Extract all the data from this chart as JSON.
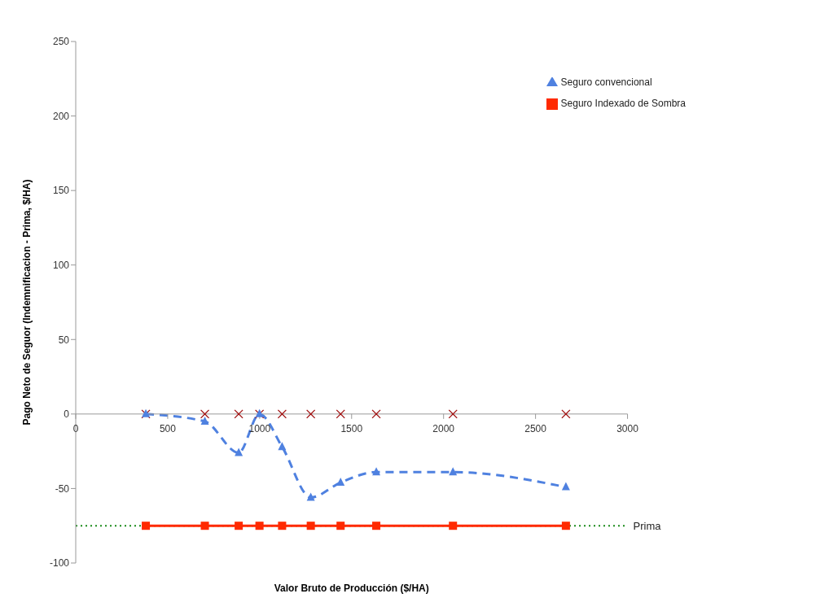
{
  "chart_data": {
    "type": "line",
    "xlabel": "Valor Bruto de Producción ($/HA)",
    "ylabel": "Pago Neto de Seguor (Indemnificacion - Prima, $/HA)",
    "x": [
      381,
      702,
      886,
      999,
      1122,
      1278,
      1440,
      1634,
      2051,
      2665
    ],
    "series": [
      {
        "name": "Seguro convencional",
        "color": "#4f81e0",
        "values": [
          0,
          -5,
          -26,
          0,
          -22,
          -56,
          -46,
          -39,
          -39,
          -49
        ],
        "marker": "triangle",
        "line_style": "dashed"
      },
      {
        "name": "Seguro Indexado de Sombra",
        "color": "#ff2a00",
        "values": [
          -75,
          -75,
          -75,
          -75,
          -75,
          -75,
          -75,
          -75,
          -75,
          -75
        ],
        "marker": "square",
        "line_style": "solid"
      },
      {
        "type": "scatter",
        "color": "#a01010",
        "values": [
          0,
          0,
          0,
          0,
          0,
          0,
          0,
          0,
          0,
          0
        ],
        "marker": "cross"
      }
    ],
    "xlim": [
      0,
      3000
    ],
    "xticks": [
      0,
      500,
      1000,
      1500,
      2000,
      2500,
      3000
    ],
    "ylim": [
      -100,
      250
    ],
    "yticks": [
      -100,
      -50,
      0,
      50,
      100,
      150,
      200,
      250
    ],
    "ref_lines": [
      {
        "axis": "y",
        "value": -75,
        "label": "Prima",
        "color": "#1a8a1a",
        "line_style": "dotted"
      }
    ],
    "grid": false,
    "legend": "top right"
  }
}
